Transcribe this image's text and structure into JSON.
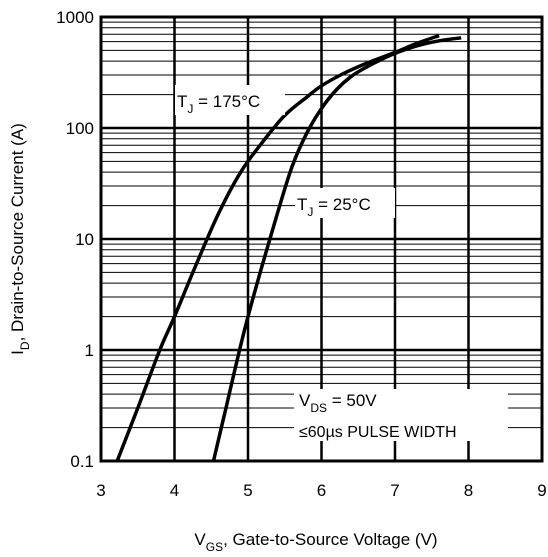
{
  "chart_data": {
    "type": "line",
    "title": "",
    "xlabel": {
      "main": "V",
      "sub": "GS",
      "rest": ", Gate-to-Source Voltage (V)"
    },
    "ylabel": {
      "main": "I",
      "sub": "D",
      "rest": ", Drain-to-Source Current  (A)"
    },
    "xlim": [
      3,
      9
    ],
    "ylim": [
      0.1,
      1000
    ],
    "yscale": "log",
    "grid": true,
    "x_ticks": [
      3,
      4,
      5,
      6,
      7,
      8,
      9
    ],
    "x_tick_labels": [
      "3",
      "4",
      "5",
      "6",
      "7",
      "8",
      "9"
    ],
    "y_ticks": [
      0.1,
      1,
      10,
      100,
      1000
    ],
    "y_tick_labels": [
      "0.1",
      "1",
      "10",
      "100",
      "1000"
    ],
    "series": [
      {
        "label": {
          "main": "T",
          "sub": "J",
          "rest": " = 175°C"
        },
        "x": [
          3.22,
          3.5,
          3.8,
          4.0,
          4.3,
          4.6,
          4.9,
          5.2,
          5.5,
          5.8,
          6.0,
          6.3,
          6.6,
          7.0,
          7.3,
          7.6
        ],
        "y": [
          0.1,
          0.3,
          1.0,
          2.0,
          6.0,
          17,
          40,
          75,
          130,
          190,
          240,
          310,
          380,
          480,
          580,
          680
        ]
      },
      {
        "label": {
          "main": "T",
          "sub": "J",
          "rest": " = 25°C"
        },
        "x": [
          4.53,
          4.7,
          4.85,
          5.0,
          5.2,
          5.4,
          5.6,
          5.8,
          6.0,
          6.2,
          6.4,
          6.6,
          6.8,
          7.0,
          7.3,
          7.6,
          7.9
        ],
        "y": [
          0.1,
          0.3,
          0.8,
          2.0,
          6.0,
          17,
          45,
          90,
          150,
          220,
          290,
          350,
          410,
          470,
          550,
          610,
          650
        ]
      }
    ],
    "annotation": {
      "main": "V",
      "sub": "DS",
      "rest": " = 50V",
      "line2": "≤60µs PULSE WIDTH"
    }
  }
}
